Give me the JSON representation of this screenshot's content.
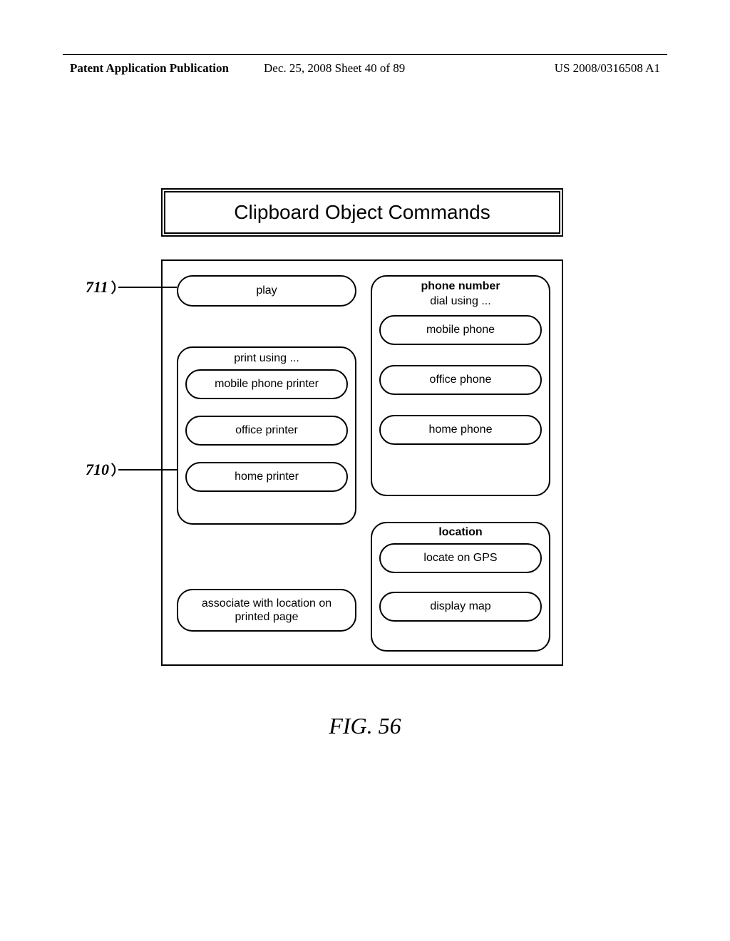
{
  "header": {
    "left": "Patent Application Publication",
    "center": "Dec. 25, 2008  Sheet 40 of 89",
    "right": "US 2008/0316508 A1"
  },
  "title": "Clipboard Object Commands",
  "refs": {
    "r711": "711",
    "r710": "710"
  },
  "play": "play",
  "print_group": {
    "header": "print using ...",
    "mobile": "mobile phone printer",
    "office": "office printer",
    "home": "home printer"
  },
  "associate": "associate with location on printed page",
  "phone_group": {
    "header_bold": "phone number",
    "header_sub": "dial using ...",
    "mobile": "mobile phone",
    "office": "office phone",
    "home": "home phone"
  },
  "location_group": {
    "header": "location",
    "gps": "locate on GPS",
    "map": "display map"
  },
  "caption": "FIG. 56"
}
